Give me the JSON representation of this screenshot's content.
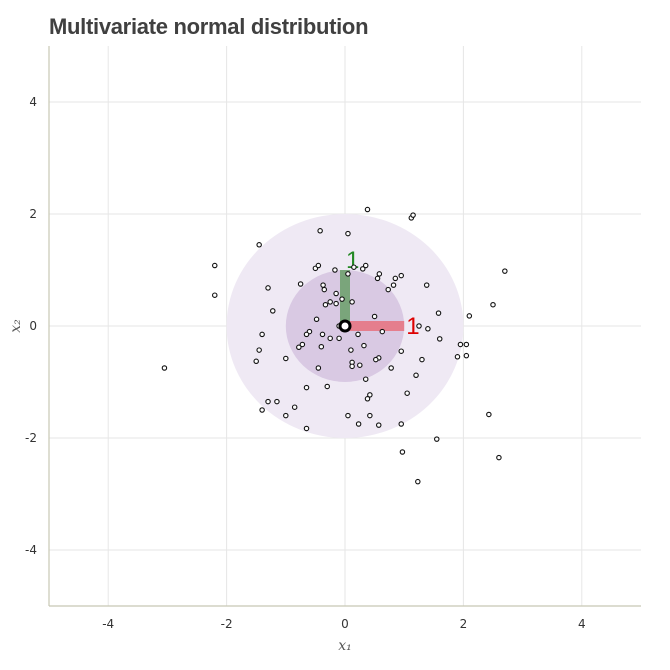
{
  "title": "Multivariate normal distribution",
  "chart_data": {
    "type": "scatter",
    "title": "Multivariate normal distribution",
    "xlabel": "x₁",
    "ylabel": "x₂",
    "xlim": [
      -5,
      5
    ],
    "ylim": [
      -5,
      5
    ],
    "xticks": [
      -4,
      -2,
      0,
      2,
      4
    ],
    "yticks": [
      -4,
      -2,
      0,
      2,
      4
    ],
    "xtick_labels": [
      "-4",
      "-2",
      "0",
      "2",
      "4"
    ],
    "ytick_labels": [
      "-4",
      "-2",
      "0",
      "2",
      "4"
    ],
    "grid": true,
    "mean": [
      0,
      0
    ],
    "sigma_regions": [
      {
        "radius": 1,
        "color": "#d9c9e3"
      },
      {
        "radius": 2,
        "color": "#efe9f4"
      }
    ],
    "eigenvectors": [
      {
        "label": "1",
        "dx": 1,
        "dy": 0,
        "color": "#e8717f",
        "label_color": "#dd0000"
      },
      {
        "label": "1",
        "dx": 0,
        "dy": 1,
        "color": "#6a9f6a",
        "label_color": "#228822"
      }
    ],
    "points": [
      [
        0.38,
        2.08
      ],
      [
        1.12,
        1.93
      ],
      [
        1.15,
        1.98
      ],
      [
        -0.42,
        1.7
      ],
      [
        0.05,
        1.65
      ],
      [
        -1.45,
        1.45
      ],
      [
        -2.2,
        1.08
      ],
      [
        -0.5,
        1.03
      ],
      [
        -0.45,
        1.08
      ],
      [
        -0.17,
        1.0
      ],
      [
        0.05,
        0.93
      ],
      [
        0.15,
        1.05
      ],
      [
        0.3,
        1.02
      ],
      [
        0.35,
        1.08
      ],
      [
        2.7,
        0.98
      ],
      [
        0.85,
        0.85
      ],
      [
        0.95,
        0.9
      ],
      [
        0.58,
        0.93
      ],
      [
        0.55,
        0.85
      ],
      [
        -2.2,
        0.55
      ],
      [
        -1.3,
        0.68
      ],
      [
        -0.75,
        0.75
      ],
      [
        -0.37,
        0.73
      ],
      [
        -0.35,
        0.65
      ],
      [
        -0.15,
        0.58
      ],
      [
        -0.05,
        0.48
      ],
      [
        0.82,
        0.73
      ],
      [
        1.38,
        0.73
      ],
      [
        0.73,
        0.65
      ],
      [
        -0.25,
        0.43
      ],
      [
        -0.15,
        0.4
      ],
      [
        -0.33,
        0.38
      ],
      [
        0.12,
        0.43
      ],
      [
        2.5,
        0.38
      ],
      [
        -1.22,
        0.27
      ],
      [
        -0.48,
        0.12
      ],
      [
        0.5,
        0.17
      ],
      [
        1.58,
        0.23
      ],
      [
        2.1,
        0.18
      ],
      [
        -0.1,
        0.0
      ],
      [
        -0.03,
        0.02
      ],
      [
        0.02,
        0.04
      ],
      [
        1.25,
        0.0
      ],
      [
        1.4,
        -0.05
      ],
      [
        0.63,
        -0.1
      ],
      [
        -0.6,
        -0.1
      ],
      [
        -0.38,
        -0.15
      ],
      [
        -0.25,
        -0.22
      ],
      [
        -0.1,
        -0.22
      ],
      [
        0.22,
        -0.15
      ],
      [
        -1.4,
        -0.15
      ],
      [
        -0.65,
        -0.15
      ],
      [
        -0.72,
        -0.33
      ],
      [
        -0.78,
        -0.38
      ],
      [
        0.32,
        -0.35
      ],
      [
        -0.4,
        -0.37
      ],
      [
        1.6,
        -0.23
      ],
      [
        1.95,
        -0.33
      ],
      [
        2.05,
        -0.33
      ],
      [
        0.1,
        -0.43
      ],
      [
        -1.45,
        -0.43
      ],
      [
        0.95,
        -0.45
      ],
      [
        1.9,
        -0.55
      ],
      [
        2.05,
        -0.53
      ],
      [
        -1.0,
        -0.58
      ],
      [
        -1.5,
        -0.63
      ],
      [
        0.57,
        -0.57
      ],
      [
        0.52,
        -0.6
      ],
      [
        1.3,
        -0.6
      ],
      [
        0.12,
        -0.65
      ],
      [
        0.12,
        -0.72
      ],
      [
        0.25,
        -0.7
      ],
      [
        -3.05,
        -0.75
      ],
      [
        -0.45,
        -0.75
      ],
      [
        0.78,
        -0.75
      ],
      [
        1.2,
        -0.88
      ],
      [
        0.35,
        -0.95
      ],
      [
        -0.3,
        -1.08
      ],
      [
        -0.65,
        -1.1
      ],
      [
        -1.3,
        -1.35
      ],
      [
        -1.15,
        -1.35
      ],
      [
        1.05,
        -1.2
      ],
      [
        0.42,
        -1.23
      ],
      [
        0.38,
        -1.3
      ],
      [
        -0.85,
        -1.45
      ],
      [
        -1.4,
        -1.5
      ],
      [
        -1.0,
        -1.6
      ],
      [
        0.05,
        -1.6
      ],
      [
        0.42,
        -1.6
      ],
      [
        2.43,
        -1.58
      ],
      [
        -0.65,
        -1.83
      ],
      [
        0.23,
        -1.75
      ],
      [
        0.57,
        -1.77
      ],
      [
        0.95,
        -1.75
      ],
      [
        1.55,
        -2.02
      ],
      [
        0.97,
        -2.25
      ],
      [
        2.6,
        -2.35
      ],
      [
        1.23,
        -2.78
      ]
    ]
  }
}
